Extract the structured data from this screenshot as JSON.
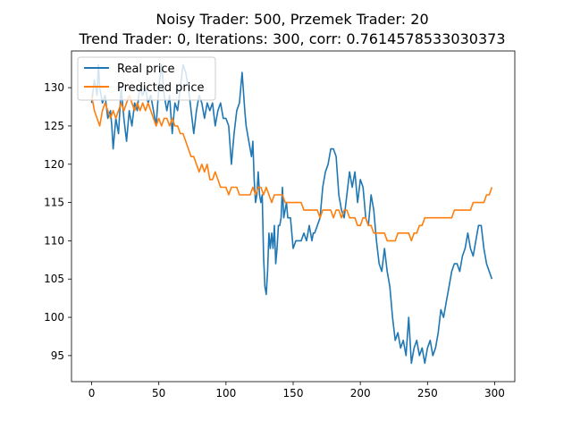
{
  "chart_data": {
    "type": "line",
    "title": "Noisy Trader: 500, Przemek Trader: 20",
    "subtitle": "Trend Trader: 0, Iterations: 300, corr: 0.7614578533030373",
    "xlabel": "",
    "ylabel": "",
    "xlim": [
      -15,
      315
    ],
    "ylim": [
      91.6,
      134.8
    ],
    "xticks": [
      0,
      50,
      100,
      150,
      200,
      250,
      300
    ],
    "yticks": [
      95,
      100,
      105,
      110,
      115,
      120,
      125,
      130
    ],
    "grid": false,
    "legend": {
      "position": "upper-left",
      "entries": [
        "Real price",
        "Predicted price"
      ]
    },
    "series": [
      {
        "name": "Real price",
        "color": "#1f77b4",
        "points": [
          [
            0,
            128
          ],
          [
            2,
            131
          ],
          [
            4,
            129
          ],
          [
            5,
            133
          ],
          [
            6,
            130
          ],
          [
            8,
            128
          ],
          [
            10,
            129
          ],
          [
            12,
            126
          ],
          [
            14,
            127
          ],
          [
            15,
            125
          ],
          [
            16,
            122
          ],
          [
            18,
            126
          ],
          [
            20,
            124
          ],
          [
            22,
            130
          ],
          [
            24,
            126
          ],
          [
            26,
            123
          ],
          [
            28,
            127
          ],
          [
            30,
            125
          ],
          [
            32,
            128
          ],
          [
            34,
            127
          ],
          [
            35,
            129
          ],
          [
            36,
            130
          ],
          [
            38,
            129
          ],
          [
            40,
            130
          ],
          [
            42,
            128
          ],
          [
            44,
            129
          ],
          [
            46,
            127
          ],
          [
            48,
            125
          ],
          [
            50,
            130
          ],
          [
            52,
            133
          ],
          [
            54,
            129
          ],
          [
            56,
            127
          ],
          [
            58,
            129
          ],
          [
            60,
            124
          ],
          [
            62,
            128
          ],
          [
            64,
            127
          ],
          [
            66,
            130
          ],
          [
            68,
            133
          ],
          [
            70,
            132
          ],
          [
            72,
            130
          ],
          [
            74,
            127
          ],
          [
            76,
            124
          ],
          [
            78,
            127
          ],
          [
            80,
            129
          ],
          [
            82,
            128
          ],
          [
            84,
            126
          ],
          [
            86,
            128
          ],
          [
            88,
            127
          ],
          [
            90,
            128
          ],
          [
            92,
            125
          ],
          [
            94,
            127
          ],
          [
            96,
            128
          ],
          [
            98,
            126
          ],
          [
            100,
            126
          ],
          [
            102,
            125
          ],
          [
            104,
            120
          ],
          [
            106,
            124
          ],
          [
            108,
            127
          ],
          [
            110,
            128
          ],
          [
            111,
            130
          ],
          [
            112,
            132
          ],
          [
            114,
            127
          ],
          [
            115,
            125
          ],
          [
            116,
            124
          ],
          [
            118,
            122
          ],
          [
            119,
            121
          ],
          [
            120,
            123
          ],
          [
            121,
            118
          ],
          [
            122,
            115
          ],
          [
            123,
            116
          ],
          [
            124,
            119
          ],
          [
            125,
            116
          ],
          [
            126,
            115
          ],
          [
            127,
            116
          ],
          [
            128,
            108
          ],
          [
            129,
            104
          ],
          [
            130,
            103
          ],
          [
            131,
            106
          ],
          [
            132,
            111
          ],
          [
            133,
            109
          ],
          [
            134,
            111
          ],
          [
            135,
            109
          ],
          [
            136,
            112
          ],
          [
            137,
            107
          ],
          [
            138,
            109
          ],
          [
            139,
            112
          ],
          [
            140,
            112
          ],
          [
            141,
            113
          ],
          [
            142,
            117
          ],
          [
            143,
            113
          ],
          [
            144,
            114
          ],
          [
            145,
            115
          ],
          [
            146,
            113
          ],
          [
            148,
            113
          ],
          [
            150,
            109
          ],
          [
            152,
            110
          ],
          [
            154,
            110
          ],
          [
            156,
            110
          ],
          [
            158,
            111
          ],
          [
            160,
            110
          ],
          [
            162,
            112
          ],
          [
            164,
            110
          ],
          [
            165,
            111
          ],
          [
            166,
            111
          ],
          [
            168,
            112
          ],
          [
            170,
            113
          ],
          [
            172,
            117
          ],
          [
            174,
            119
          ],
          [
            176,
            120
          ],
          [
            178,
            122
          ],
          [
            180,
            122
          ],
          [
            182,
            121
          ],
          [
            184,
            116
          ],
          [
            186,
            114
          ],
          [
            188,
            113
          ],
          [
            190,
            116
          ],
          [
            192,
            119
          ],
          [
            194,
            117
          ],
          [
            196,
            119
          ],
          [
            198,
            115
          ],
          [
            200,
            118
          ],
          [
            202,
            117
          ],
          [
            204,
            113
          ],
          [
            206,
            112
          ],
          [
            208,
            116
          ],
          [
            210,
            114
          ],
          [
            212,
            110
          ],
          [
            214,
            107
          ],
          [
            216,
            106
          ],
          [
            218,
            109
          ],
          [
            220,
            106
          ],
          [
            222,
            104
          ],
          [
            224,
            100
          ],
          [
            226,
            97
          ],
          [
            228,
            98
          ],
          [
            230,
            96
          ],
          [
            232,
            97
          ],
          [
            234,
            95
          ],
          [
            236,
            100
          ],
          [
            238,
            94
          ],
          [
            240,
            96
          ],
          [
            242,
            97
          ],
          [
            244,
            95
          ],
          [
            246,
            96
          ],
          [
            248,
            94
          ],
          [
            250,
            96
          ],
          [
            252,
            97
          ],
          [
            254,
            95
          ],
          [
            256,
            96
          ],
          [
            258,
            98
          ],
          [
            260,
            101
          ],
          [
            262,
            100
          ],
          [
            264,
            102
          ],
          [
            266,
            104
          ],
          [
            268,
            106
          ],
          [
            270,
            107
          ],
          [
            272,
            107
          ],
          [
            274,
            106
          ],
          [
            276,
            108
          ],
          [
            278,
            109
          ],
          [
            280,
            111
          ],
          [
            282,
            109
          ],
          [
            284,
            108
          ],
          [
            286,
            110
          ],
          [
            288,
            112
          ],
          [
            290,
            112
          ],
          [
            292,
            109
          ],
          [
            294,
            107
          ],
          [
            296,
            106
          ],
          [
            298,
            105
          ]
        ]
      },
      {
        "name": "Predicted price",
        "color": "#ff7f0e",
        "points": [
          [
            0,
            129
          ],
          [
            2,
            127
          ],
          [
            4,
            126
          ],
          [
            6,
            125
          ],
          [
            8,
            127
          ],
          [
            10,
            128
          ],
          [
            12,
            127
          ],
          [
            14,
            126
          ],
          [
            16,
            127
          ],
          [
            18,
            126
          ],
          [
            20,
            127
          ],
          [
            22,
            128
          ],
          [
            24,
            127
          ],
          [
            26,
            128
          ],
          [
            28,
            129
          ],
          [
            30,
            128
          ],
          [
            32,
            127
          ],
          [
            34,
            128
          ],
          [
            36,
            127
          ],
          [
            38,
            128
          ],
          [
            40,
            127
          ],
          [
            42,
            128
          ],
          [
            44,
            127
          ],
          [
            46,
            126
          ],
          [
            48,
            125
          ],
          [
            50,
            126
          ],
          [
            52,
            125
          ],
          [
            54,
            126
          ],
          [
            56,
            126
          ],
          [
            58,
            125
          ],
          [
            60,
            126
          ],
          [
            62,
            125
          ],
          [
            64,
            125
          ],
          [
            66,
            124
          ],
          [
            68,
            124
          ],
          [
            70,
            123
          ],
          [
            72,
            122
          ],
          [
            74,
            121
          ],
          [
            76,
            121
          ],
          [
            78,
            120
          ],
          [
            80,
            119
          ],
          [
            82,
            120
          ],
          [
            84,
            119
          ],
          [
            86,
            120
          ],
          [
            88,
            118
          ],
          [
            90,
            118
          ],
          [
            92,
            119
          ],
          [
            94,
            118
          ],
          [
            96,
            117
          ],
          [
            98,
            117
          ],
          [
            100,
            117
          ],
          [
            102,
            116
          ],
          [
            104,
            117
          ],
          [
            106,
            117
          ],
          [
            108,
            117
          ],
          [
            110,
            116
          ],
          [
            112,
            116
          ],
          [
            114,
            116
          ],
          [
            116,
            116
          ],
          [
            118,
            116
          ],
          [
            120,
            117
          ],
          [
            122,
            116
          ],
          [
            124,
            117
          ],
          [
            126,
            117
          ],
          [
            128,
            116
          ],
          [
            130,
            117
          ],
          [
            132,
            116
          ],
          [
            134,
            115
          ],
          [
            136,
            116
          ],
          [
            138,
            116
          ],
          [
            140,
            116
          ],
          [
            142,
            116
          ],
          [
            144,
            115
          ],
          [
            146,
            115
          ],
          [
            148,
            115
          ],
          [
            150,
            115
          ],
          [
            152,
            115
          ],
          [
            154,
            115
          ],
          [
            156,
            115
          ],
          [
            158,
            114
          ],
          [
            160,
            114
          ],
          [
            162,
            114
          ],
          [
            164,
            114
          ],
          [
            166,
            114
          ],
          [
            168,
            114
          ],
          [
            170,
            113
          ],
          [
            172,
            114
          ],
          [
            174,
            114
          ],
          [
            176,
            114
          ],
          [
            178,
            114
          ],
          [
            180,
            113
          ],
          [
            182,
            114
          ],
          [
            184,
            114
          ],
          [
            186,
            113
          ],
          [
            188,
            114
          ],
          [
            190,
            114
          ],
          [
            192,
            113
          ],
          [
            194,
            113
          ],
          [
            196,
            113
          ],
          [
            198,
            112
          ],
          [
            200,
            112
          ],
          [
            202,
            113
          ],
          [
            204,
            113
          ],
          [
            206,
            112
          ],
          [
            208,
            112
          ],
          [
            210,
            111
          ],
          [
            212,
            111
          ],
          [
            214,
            111
          ],
          [
            216,
            111
          ],
          [
            218,
            111
          ],
          [
            220,
            110
          ],
          [
            222,
            110
          ],
          [
            224,
            110
          ],
          [
            226,
            110
          ],
          [
            228,
            111
          ],
          [
            230,
            111
          ],
          [
            232,
            111
          ],
          [
            234,
            111
          ],
          [
            236,
            111
          ],
          [
            238,
            110
          ],
          [
            240,
            111
          ],
          [
            242,
            111
          ],
          [
            244,
            112
          ],
          [
            246,
            112
          ],
          [
            248,
            113
          ],
          [
            250,
            113
          ],
          [
            252,
            113
          ],
          [
            254,
            113
          ],
          [
            256,
            113
          ],
          [
            258,
            113
          ],
          [
            260,
            113
          ],
          [
            262,
            113
          ],
          [
            264,
            113
          ],
          [
            266,
            113
          ],
          [
            268,
            113
          ],
          [
            270,
            114
          ],
          [
            272,
            114
          ],
          [
            274,
            114
          ],
          [
            276,
            114
          ],
          [
            278,
            114
          ],
          [
            280,
            114
          ],
          [
            282,
            114
          ],
          [
            284,
            115
          ],
          [
            286,
            115
          ],
          [
            288,
            115
          ],
          [
            290,
            115
          ],
          [
            292,
            115
          ],
          [
            294,
            116
          ],
          [
            296,
            116
          ],
          [
            298,
            117
          ]
        ]
      }
    ]
  }
}
